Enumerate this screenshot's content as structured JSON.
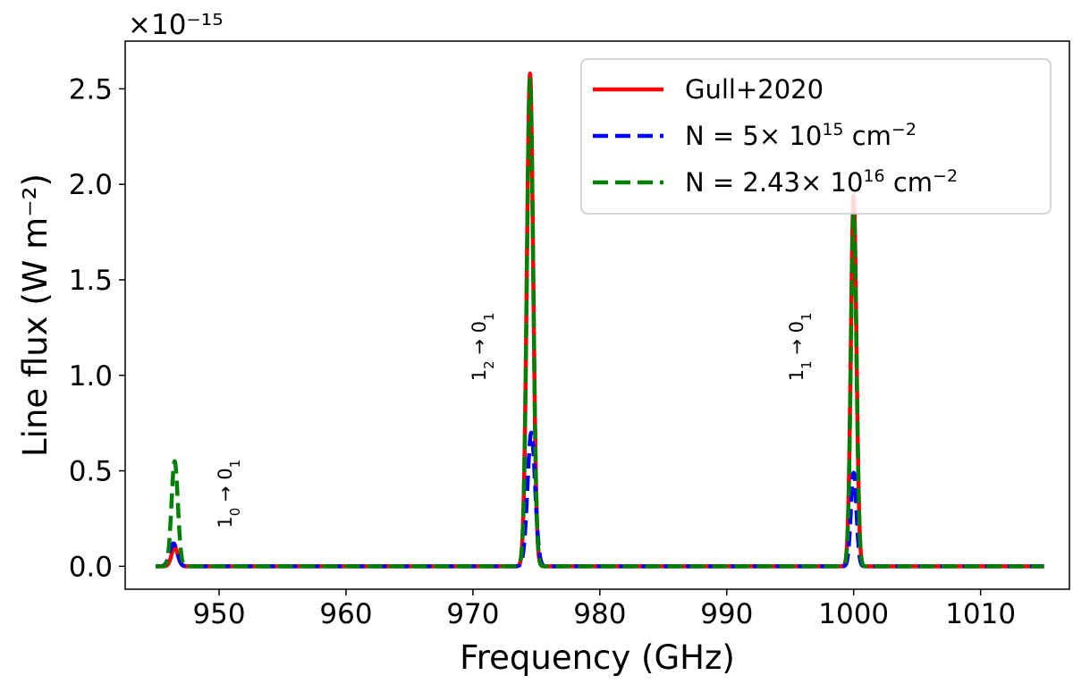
{
  "chart_data": {
    "type": "line",
    "title": "",
    "xlabel": "Frequency (GHz)",
    "ylabel": "Line flux (W m⁻²)",
    "y_offset_label": "×10⁻¹⁵",
    "xlim": [
      942.6,
      1017.0
    ],
    "ylim": [
      -0.12,
      2.75
    ],
    "x_ticks": [
      950,
      960,
      970,
      980,
      990,
      1000,
      1010
    ],
    "y_ticks": [
      0.0,
      0.5,
      1.0,
      1.5,
      2.0,
      2.5
    ],
    "y_tick_labels": [
      "0.0",
      "0.5",
      "1.0",
      "1.5",
      "2.0",
      "2.5"
    ],
    "x_range": [
      945,
      1015
    ],
    "grid": false,
    "legend_position": "top-right",
    "series": [
      {
        "name": "Gull+2020",
        "color": "#ff0000",
        "style": "solid",
        "peaks": [
          {
            "center": 946.5,
            "height": 0.1,
            "width": 0.25
          },
          {
            "center": 974.5,
            "height": 2.58,
            "width": 0.25
          },
          {
            "center": 1000.0,
            "height": 1.94,
            "width": 0.22
          }
        ]
      },
      {
        "name": "N = 5× 10¹⁵ cm⁻²",
        "color": "#0000ff",
        "style": "dashed",
        "peaks": [
          {
            "center": 946.4,
            "height": 0.12,
            "width": 0.3
          },
          {
            "center": 974.6,
            "height": 0.7,
            "width": 0.3
          },
          {
            "center": 1000.0,
            "height": 0.49,
            "width": 0.22
          }
        ]
      },
      {
        "name": "N = 2.43× 10¹⁶ cm⁻²",
        "color": "#008000",
        "style": "dashed",
        "peaks": [
          {
            "center": 946.5,
            "height": 0.55,
            "width": 0.25
          },
          {
            "center": 974.5,
            "height": 2.55,
            "width": 0.25
          },
          {
            "center": 1000.0,
            "height": 1.85,
            "width": 0.22
          }
        ]
      }
    ],
    "legend_entries": [
      {
        "base": "Gull+2020",
        "sup": "",
        "tail": "",
        "sup2": ""
      },
      {
        "base": "N = 5× 10",
        "sup": "15",
        "tail": " cm",
        "sup2": "−2"
      },
      {
        "base": "N = 2.43× 10",
        "sup": "16",
        "tail": " cm",
        "sup2": "−2"
      }
    ],
    "annotations": [
      {
        "x": 951,
        "y": 0.2,
        "main": "1",
        "sub": "0",
        "arrow": " → ",
        "main2": "0",
        "sub2": "1"
      },
      {
        "x": 971,
        "y": 0.97,
        "main": "1",
        "sub": "2",
        "arrow": " → ",
        "main2": "0",
        "sub2": "1"
      },
      {
        "x": 996,
        "y": 0.97,
        "main": "1",
        "sub": "1",
        "arrow": " → ",
        "main2": "0",
        "sub2": "1"
      }
    ]
  }
}
